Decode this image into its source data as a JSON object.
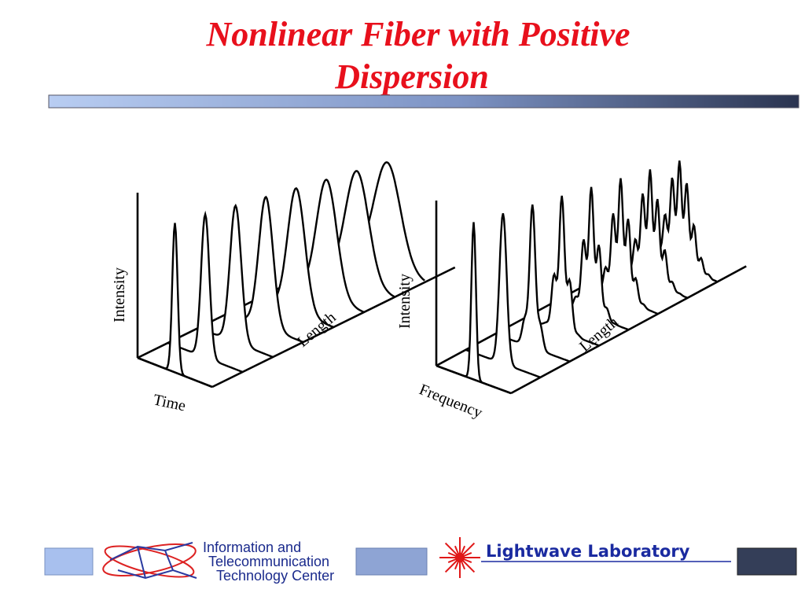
{
  "title": {
    "lines": [
      "Nonlinear Fiber with Positive",
      "Dispersion"
    ]
  },
  "figures": [
    {
      "y_label": "Intensity",
      "depth_label": "Length",
      "x_label": "Time"
    },
    {
      "y_label": "Intensity",
      "depth_label": "Length",
      "x_label": "Frequency"
    }
  ],
  "footer": {
    "center_lines": [
      "Information and",
      "Telecommunication",
      "Technology Center"
    ],
    "lab": "Lightwave Laboratory"
  }
}
